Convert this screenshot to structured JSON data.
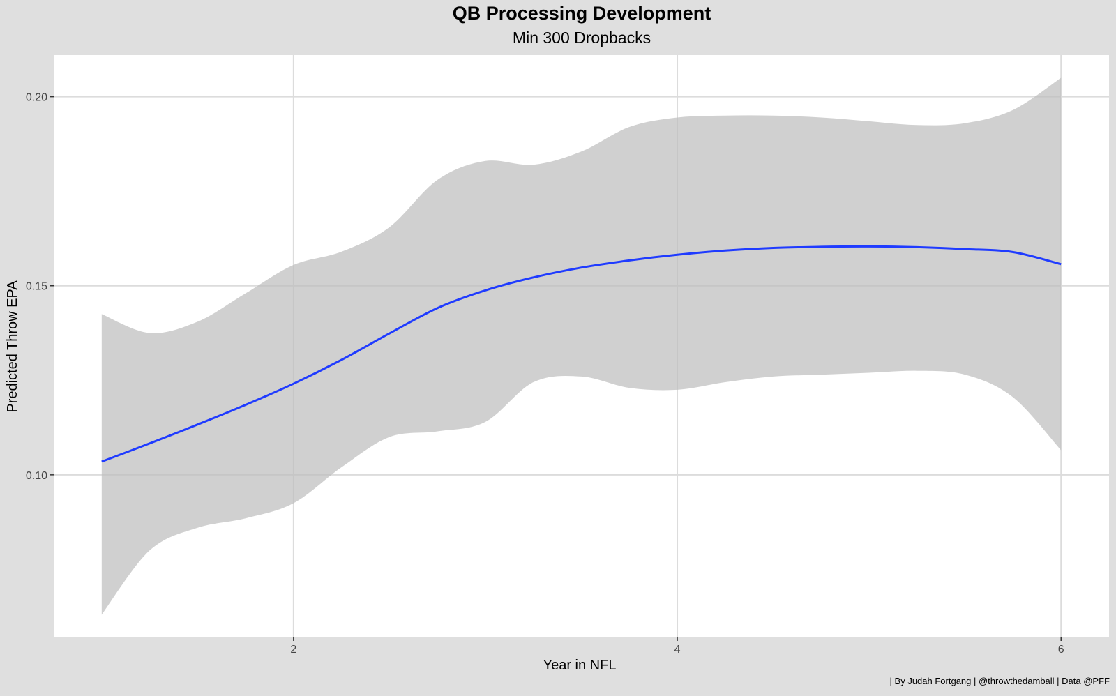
{
  "chart_data": {
    "type": "line",
    "title": "QB Processing Development",
    "subtitle": "Min 300 Dropbacks",
    "xlabel": "Year in NFL",
    "ylabel": "Predicted Throw EPA",
    "caption": "| By Judah Fortgang | @throwthedamball | Data @PFF",
    "xlim": [
      0.75,
      6.25
    ],
    "ylim": [
      0.057,
      0.211
    ],
    "x_ticks": [
      2,
      4,
      6
    ],
    "x_tick_labels": [
      "2",
      "4",
      "6"
    ],
    "y_ticks": [
      0.1,
      0.15,
      0.2
    ],
    "y_tick_labels": [
      "0.10",
      "0.15",
      "0.20"
    ],
    "grid": true,
    "series": [
      {
        "color": "#1f3bff",
        "x": [
          1.0,
          1.25,
          1.5,
          1.75,
          2.0,
          2.25,
          2.5,
          2.75,
          3.0,
          3.25,
          3.5,
          3.75,
          4.0,
          4.25,
          4.5,
          4.75,
          5.0,
          5.25,
          5.5,
          5.75,
          6.0
        ],
        "y": [
          0.1035,
          0.1083,
          0.1133,
          0.1185,
          0.1241,
          0.1304,
          0.1374,
          0.1441,
          0.1488,
          0.1522,
          0.1548,
          0.1567,
          0.1582,
          0.1593,
          0.16,
          0.1603,
          0.1604,
          0.1602,
          0.1597,
          0.1589,
          0.1557
        ],
        "ribbon_upper": [
          0.1425,
          0.1375,
          0.1405,
          0.148,
          0.1555,
          0.159,
          0.1655,
          0.178,
          0.183,
          0.182,
          0.1855,
          0.192,
          0.1945,
          0.195,
          0.195,
          0.1945,
          0.1935,
          0.1925,
          0.193,
          0.1965,
          0.205
        ],
        "ribbon_lower": [
          0.063,
          0.08,
          0.086,
          0.0885,
          0.0925,
          0.102,
          0.11,
          0.1115,
          0.114,
          0.1245,
          0.126,
          0.123,
          0.1225,
          0.1245,
          0.126,
          0.1265,
          0.127,
          0.1275,
          0.1265,
          0.1205,
          0.1065
        ]
      }
    ]
  },
  "colors": {
    "background": "#dfdfdf",
    "panel": "#ffffff",
    "grid": "#dcdcdc",
    "ribbon": "#bebebe",
    "line": "#1f3bff"
  }
}
